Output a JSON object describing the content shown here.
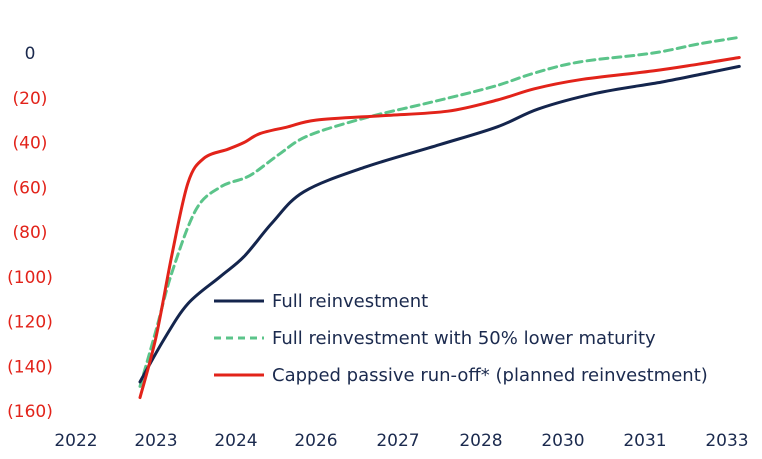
{
  "chart_data": {
    "type": "line",
    "title": "",
    "xlabel": "",
    "ylabel": "",
    "x_ticks": [
      "2022",
      "2023",
      "2024",
      "2026",
      "2027",
      "2028",
      "2030",
      "2031",
      "2033"
    ],
    "y_ticks": [
      "0",
      "(20)",
      "(40)",
      "(60)",
      "(80)",
      "(100)",
      "(120)",
      "(140)",
      "(160)"
    ],
    "y_tick_values": [
      0,
      -20,
      -40,
      -60,
      -80,
      -100,
      -120,
      -140,
      -160
    ],
    "ylim": [
      -160,
      0
    ],
    "xlim": [
      2022,
      2033
    ],
    "grid": false,
    "legend_position": "bottom-right",
    "colors": {
      "negative_tick": "#e2231a",
      "zero_tick": "#1b2a4e",
      "axis_text": "#1b2a4e"
    },
    "series": [
      {
        "name": "Full reinvestment",
        "color": "#14254d",
        "dash": "solid",
        "points": [
          [
            2022.8,
            -147
          ],
          [
            2023.1,
            -128
          ],
          [
            2023.4,
            -112
          ],
          [
            2023.8,
            -100
          ],
          [
            2024.2,
            -91
          ],
          [
            2024.9,
            -76
          ],
          [
            2025.7,
            -62
          ],
          [
            2026.6,
            -51
          ],
          [
            2027.5,
            -41
          ],
          [
            2028.4,
            -33
          ],
          [
            2029.4,
            -25
          ],
          [
            2030.4,
            -18
          ],
          [
            2031.4,
            -13
          ],
          [
            2032.5,
            -9
          ],
          [
            2033.3,
            -6
          ]
        ]
      },
      {
        "name": "Full reinvestment with 50% lower maturity",
        "color": "#5bc48a",
        "dash": "dashed",
        "points": [
          [
            2022.8,
            -149
          ],
          [
            2023.0,
            -124
          ],
          [
            2023.2,
            -98
          ],
          [
            2023.5,
            -70
          ],
          [
            2023.8,
            -60
          ],
          [
            2024.2,
            -56
          ],
          [
            2024.5,
            -53
          ],
          [
            2025.1,
            -45
          ],
          [
            2025.8,
            -37
          ],
          [
            2026.6,
            -29
          ],
          [
            2027.4,
            -22
          ],
          [
            2028.3,
            -15
          ],
          [
            2029.3,
            -9
          ],
          [
            2030.2,
            -4
          ],
          [
            2031.2,
            0
          ],
          [
            2032.3,
            4
          ],
          [
            2033.3,
            7
          ]
        ]
      },
      {
        "name": "Capped passive run-off* (planned reinvestment)",
        "color": "#e2231a",
        "dash": "solid",
        "points": [
          [
            2022.8,
            -154
          ],
          [
            2023.0,
            -127
          ],
          [
            2023.2,
            -90
          ],
          [
            2023.4,
            -58
          ],
          [
            2023.6,
            -47
          ],
          [
            2023.9,
            -43
          ],
          [
            2024.2,
            -40
          ],
          [
            2024.6,
            -36
          ],
          [
            2025.3,
            -33
          ],
          [
            2026.0,
            -30
          ],
          [
            2026.8,
            -28
          ],
          [
            2027.6,
            -26
          ],
          [
            2028.4,
            -21
          ],
          [
            2029.3,
            -16
          ],
          [
            2030.2,
            -12
          ],
          [
            2031.2,
            -8
          ],
          [
            2032.3,
            -5
          ],
          [
            2033.3,
            -2
          ]
        ]
      }
    ]
  }
}
